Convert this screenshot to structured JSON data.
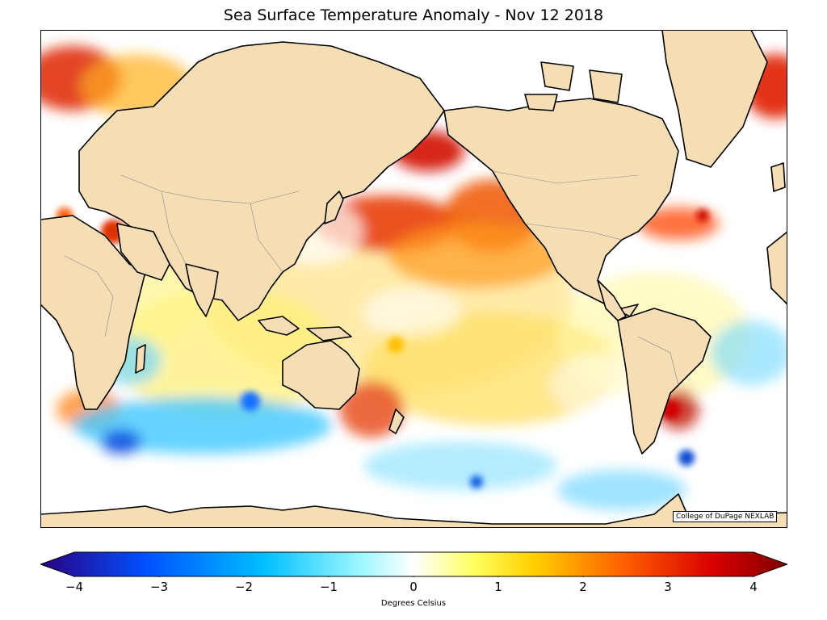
{
  "title": "Sea Surface Temperature Anomaly - Nov 12 2018",
  "credit": "College of DuPage NEXLAB",
  "colorbar": {
    "label": "Degrees Celsius",
    "range": [
      -4,
      4
    ],
    "ticks": [
      "−4",
      "−3",
      "−2",
      "−1",
      "0",
      "1",
      "2",
      "3",
      "4"
    ],
    "colors": [
      "#2a0080",
      "#0060ff",
      "#00c8ff",
      "#ffffff",
      "#ffff00",
      "#ff8000",
      "#d80000",
      "#800000"
    ]
  },
  "map_colors": {
    "ocean_default": "#ffffff",
    "land": "#f5deb3",
    "coastline": "#000000",
    "borders": "#888888"
  }
}
